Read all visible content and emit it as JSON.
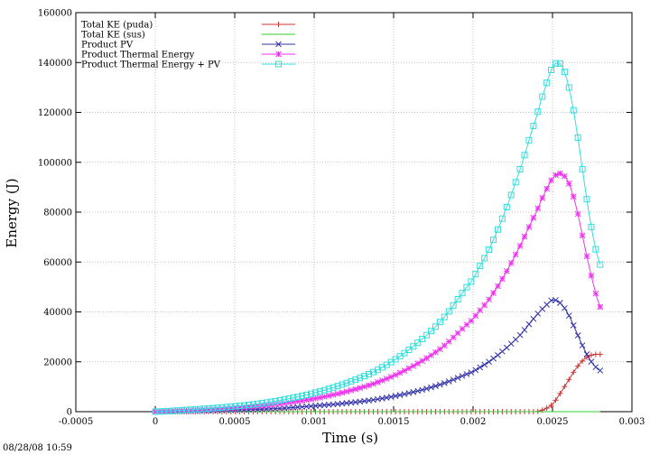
{
  "chart_data": {
    "type": "line",
    "title": "",
    "xlabel": "Time (s)",
    "ylabel": "Energy (J)",
    "xlim": [
      -0.0005,
      0.003
    ],
    "ylim": [
      0,
      160000
    ],
    "xticks": [
      -0.0005,
      0,
      0.0005,
      0.001,
      0.0015,
      0.002,
      0.0025,
      0.003
    ],
    "xtick_labels": [
      "-0.0005",
      "0",
      "0.0005",
      "0.001",
      "0.0015",
      "0.002",
      "0.0025",
      "0.003"
    ],
    "yticks": [
      0,
      20000,
      40000,
      60000,
      80000,
      100000,
      120000,
      140000,
      160000
    ],
    "ytick_labels": [
      "0",
      "20000",
      "40000",
      "60000",
      "80000",
      "100000",
      "120000",
      "140000",
      "160000"
    ],
    "grid": true,
    "legend_position": "top-left",
    "timestamp": "08/28/08 10:59",
    "series": [
      {
        "name": "Total KE (puda)",
        "color": "#cc3333",
        "marker": "plus",
        "x": [
          0,
          0.0005,
          0.001,
          0.0015,
          0.002,
          0.0024,
          0.00245,
          0.0025,
          0.00255,
          0.0026,
          0.00265,
          0.0027,
          0.00275,
          0.0028
        ],
        "y": [
          0,
          0,
          0,
          0,
          0,
          0,
          1000,
          3000,
          7500,
          12500,
          17500,
          21000,
          22800,
          23000
        ]
      },
      {
        "name": "Total KE (sus)",
        "color": "#33cc33",
        "marker": "none",
        "x": [
          0,
          0.0028
        ],
        "y": [
          0,
          0
        ]
      },
      {
        "name": "Product PV",
        "color": "#3333aa",
        "marker": "cross",
        "x": [
          0,
          0.0002,
          0.0004,
          0.0006,
          0.0008,
          0.001,
          0.0012,
          0.0014,
          0.0016,
          0.0018,
          0.002,
          0.0021,
          0.0022,
          0.0023,
          0.0024,
          0.00245,
          0.0025,
          0.00255,
          0.0026,
          0.00265,
          0.0027,
          0.00275,
          0.0028
        ],
        "y": [
          0,
          200,
          500,
          800,
          1400,
          2300,
          3400,
          5000,
          7500,
          11000,
          16000,
          20000,
          25000,
          31000,
          38500,
          42000,
          44800,
          43500,
          39000,
          32000,
          25000,
          19500,
          16500
        ]
      },
      {
        "name": "Product Thermal Energy",
        "color": "#ee33ee",
        "marker": "star",
        "x": [
          0,
          0.0002,
          0.0004,
          0.0006,
          0.0008,
          0.001,
          0.0012,
          0.0014,
          0.0016,
          0.0018,
          0.002,
          0.0021,
          0.0022,
          0.0023,
          0.0024,
          0.00245,
          0.0025,
          0.00255,
          0.0026,
          0.00265,
          0.0027,
          0.00275,
          0.0028
        ],
        "y": [
          0,
          500,
          1100,
          2000,
          3300,
          5200,
          8000,
          11800,
          17500,
          25500,
          37000,
          45000,
          55000,
          67000,
          80000,
          87500,
          93500,
          95500,
          92000,
          82000,
          67000,
          53000,
          42000
        ]
      },
      {
        "name": "Product Thermal Energy + PV",
        "color": "#33dddd",
        "marker": "square",
        "x": [
          0,
          0.0002,
          0.0004,
          0.0006,
          0.0008,
          0.001,
          0.0012,
          0.0014,
          0.0016,
          0.0018,
          0.002,
          0.0021,
          0.0022,
          0.0023,
          0.0024,
          0.00245,
          0.0025,
          0.00255,
          0.0026,
          0.00265,
          0.0027,
          0.00275,
          0.0028
        ],
        "y": [
          0,
          700,
          1600,
          2800,
          4700,
          7500,
          11400,
          16800,
          25000,
          36500,
          53000,
          65000,
          80000,
          98000,
          118000,
          129000,
          138000,
          139500,
          131000,
          114000,
          92000,
          72000,
          59000
        ]
      }
    ]
  }
}
